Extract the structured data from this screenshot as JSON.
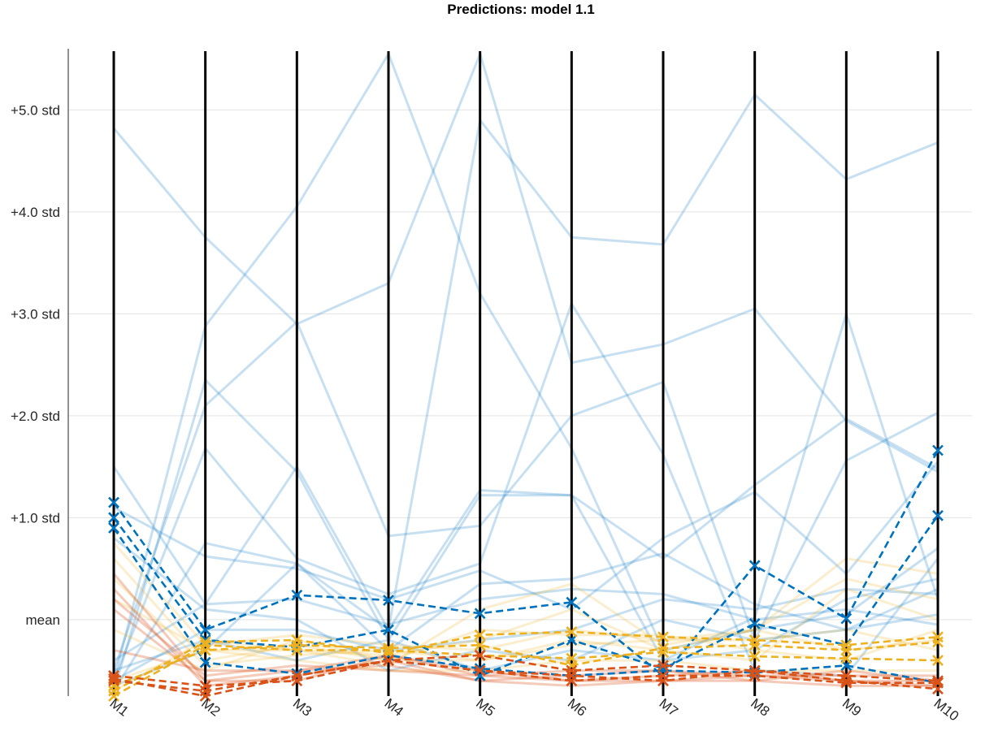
{
  "chart_data": {
    "type": "line",
    "title": "Predictions: model 1.1",
    "categories": [
      "M1",
      "M2",
      "M3",
      "M4",
      "M5",
      "M6",
      "M7",
      "M8",
      "M9",
      "M10"
    ],
    "y_tick_labels": [
      {
        "value": 0,
        "label": "mean"
      },
      {
        "value": 1,
        "label": "+1.0 std"
      },
      {
        "value": 2,
        "label": "+2.0 std"
      },
      {
        "value": 3,
        "label": "+3.0 std"
      },
      {
        "value": 4,
        "label": "+4.0 std"
      },
      {
        "value": 5,
        "label": "+5.0 std"
      }
    ],
    "ylim": [
      -0.75,
      5.6
    ],
    "grid": "horizontal",
    "colors": {
      "blue": "#0072BD",
      "orange": "#D95319",
      "yellow": "#EDB120",
      "axis": "#000000",
      "grid": "#e3e3e3"
    },
    "background_series": [
      {
        "group": "blue",
        "values": [
          4.82,
          3.75,
          2.9,
          3.3,
          5.55,
          2.52,
          2.7,
          3.05,
          1.95,
          1.45
        ]
      },
      {
        "group": "blue",
        "values": [
          1.5,
          0.15,
          1.5,
          -0.1,
          4.9,
          3.75,
          3.68,
          5.15,
          4.32,
          4.68
        ]
      },
      {
        "group": "blue",
        "values": [
          -0.6,
          2.88,
          4.05,
          5.55,
          3.2,
          1.68,
          -0.3,
          -0.1,
          0.05,
          0.7
        ]
      },
      {
        "group": "blue",
        "values": [
          -0.7,
          2.35,
          1.45,
          -0.2,
          1.22,
          1.22,
          0.6,
          1.32,
          1.97,
          1.48
        ]
      },
      {
        "group": "blue",
        "values": [
          -0.5,
          2.1,
          2.92,
          0.82,
          0.92,
          2.0,
          2.33,
          -0.2,
          1.56,
          2.03
        ]
      },
      {
        "group": "blue",
        "values": [
          -0.6,
          1.68,
          0.6,
          0.25,
          0.55,
          3.1,
          1.62,
          -0.5,
          -0.55,
          0.6
        ]
      },
      {
        "group": "blue",
        "values": [
          -0.65,
          -0.3,
          0.55,
          -0.1,
          1.27,
          1.22,
          -0.4,
          0.02,
          3.0,
          0.2
        ]
      },
      {
        "group": "blue",
        "values": [
          1.1,
          0.62,
          0.5,
          0.2,
          0.48,
          0.1,
          0.8,
          1.25,
          0.45,
          1.55
        ]
      },
      {
        "group": "blue",
        "values": [
          -0.7,
          0.75,
          0.55,
          -0.3,
          0.35,
          0.4,
          0.65,
          0.15,
          -0.1,
          0.3
        ]
      },
      {
        "group": "blue",
        "values": [
          -0.4,
          0.15,
          0.2,
          -0.05,
          0.2,
          0.3,
          0.25,
          0.0,
          0.1,
          -0.05
        ]
      },
      {
        "group": "blue",
        "values": [
          -0.6,
          -0.1,
          -0.1,
          -0.3,
          -0.2,
          -0.1,
          0.2,
          0.1,
          0.3,
          0.25
        ]
      },
      {
        "group": "blue",
        "values": [
          0.8,
          0.1,
          0.0,
          -0.5,
          -0.3,
          -0.4,
          0.0,
          -0.2,
          -0.1,
          0.05
        ]
      },
      {
        "group": "blue",
        "values": [
          -0.5,
          -0.2,
          -0.4,
          -0.2,
          -0.5,
          -0.3,
          -0.4,
          -0.3,
          0.2,
          0.4
        ]
      },
      {
        "group": "yellow",
        "values": [
          0.75,
          -0.25,
          -0.15,
          -0.25,
          -0.3,
          -0.1,
          -0.2,
          -0.1,
          0.6,
          0.45
        ]
      },
      {
        "group": "yellow",
        "values": [
          -0.6,
          -0.3,
          -0.3,
          -0.35,
          -0.2,
          0.1,
          -0.3,
          -0.1,
          0.4,
          0.2
        ]
      },
      {
        "group": "yellow",
        "values": [
          0.6,
          -0.4,
          -0.25,
          -0.4,
          -0.4,
          -0.2,
          -0.3,
          -0.4,
          0.3,
          0.0
        ]
      },
      {
        "group": "yellow",
        "values": [
          -0.7,
          -0.2,
          -0.3,
          -0.45,
          0.1,
          0.35,
          -0.25,
          -0.1,
          -0.3,
          -0.2
        ]
      },
      {
        "group": "yellow",
        "values": [
          0.4,
          -0.45,
          -0.35,
          -0.3,
          -0.4,
          -0.25,
          -0.2,
          -0.2,
          -0.1,
          -0.3
        ]
      },
      {
        "group": "yellow",
        "values": [
          -0.1,
          -0.5,
          -0.2,
          -0.4,
          -0.1,
          -0.15,
          -0.15,
          -0.3,
          -0.4,
          -0.1
        ]
      },
      {
        "group": "yellow",
        "values": [
          0.2,
          -0.3,
          -0.4,
          -0.5,
          -0.5,
          -0.4,
          -0.4,
          -0.5,
          -0.5,
          -0.5
        ]
      },
      {
        "group": "orange",
        "values": [
          0.45,
          -0.6,
          -0.5,
          -0.35,
          -0.55,
          -0.6,
          -0.6,
          -0.55,
          -0.6,
          -0.65
        ]
      },
      {
        "group": "orange",
        "values": [
          0.3,
          -0.65,
          -0.55,
          -0.4,
          -0.6,
          -0.65,
          -0.6,
          -0.6,
          -0.65,
          -0.65
        ]
      },
      {
        "group": "orange",
        "values": [
          0.1,
          -0.6,
          -0.6,
          -0.35,
          -0.5,
          -0.6,
          -0.55,
          -0.5,
          -0.6,
          -0.6
        ]
      },
      {
        "group": "orange",
        "values": [
          -0.3,
          -0.5,
          -0.5,
          -0.45,
          -0.6,
          -0.55,
          -0.5,
          -0.55,
          -0.55,
          -0.55
        ]
      },
      {
        "group": "orange",
        "values": [
          0.2,
          -0.55,
          -0.45,
          -0.5,
          -0.55,
          -0.5,
          -0.5,
          -0.6,
          -0.5,
          -0.6
        ]
      }
    ],
    "highlight_series": [
      {
        "group": "blue",
        "values": [
          1.15,
          -0.1,
          0.24,
          0.19,
          0.06,
          0.17,
          -0.55,
          0.53,
          0.01,
          1.66
        ]
      },
      {
        "group": "blue",
        "values": [
          1.0,
          -0.2,
          -0.27,
          -0.1,
          -0.55,
          -0.2,
          -0.48,
          -0.04,
          -0.25,
          1.02
        ]
      },
      {
        "group": "blue",
        "values": [
          0.9,
          -0.42,
          -0.53,
          -0.35,
          -0.48,
          -0.55,
          -0.5,
          -0.52,
          -0.45,
          -0.62
        ]
      },
      {
        "group": "yellow",
        "values": [
          -0.7,
          -0.22,
          -0.2,
          -0.33,
          -0.15,
          -0.12,
          -0.17,
          -0.2,
          -0.25,
          -0.17
        ]
      },
      {
        "group": "yellow",
        "values": [
          -0.65,
          -0.3,
          -0.25,
          -0.28,
          -0.25,
          -0.45,
          -0.28,
          -0.25,
          -0.3,
          -0.22
        ]
      },
      {
        "group": "yellow",
        "values": [
          -0.75,
          -0.25,
          -0.3,
          -0.3,
          -0.35,
          -0.38,
          -0.32,
          -0.36,
          -0.38,
          -0.4
        ]
      },
      {
        "group": "orange",
        "values": [
          -0.58,
          -0.75,
          -0.55,
          -0.4,
          -0.35,
          -0.5,
          -0.45,
          -0.5,
          -0.6,
          -0.68
        ]
      },
      {
        "group": "orange",
        "values": [
          -0.55,
          -0.65,
          -0.6,
          -0.4,
          -0.5,
          -0.6,
          -0.55,
          -0.55,
          -0.62,
          -0.62
        ]
      },
      {
        "group": "orange",
        "values": [
          -0.6,
          -0.7,
          -0.55,
          -0.4,
          -0.5,
          -0.55,
          -0.6,
          -0.5,
          -0.55,
          -0.6
        ]
      }
    ]
  }
}
